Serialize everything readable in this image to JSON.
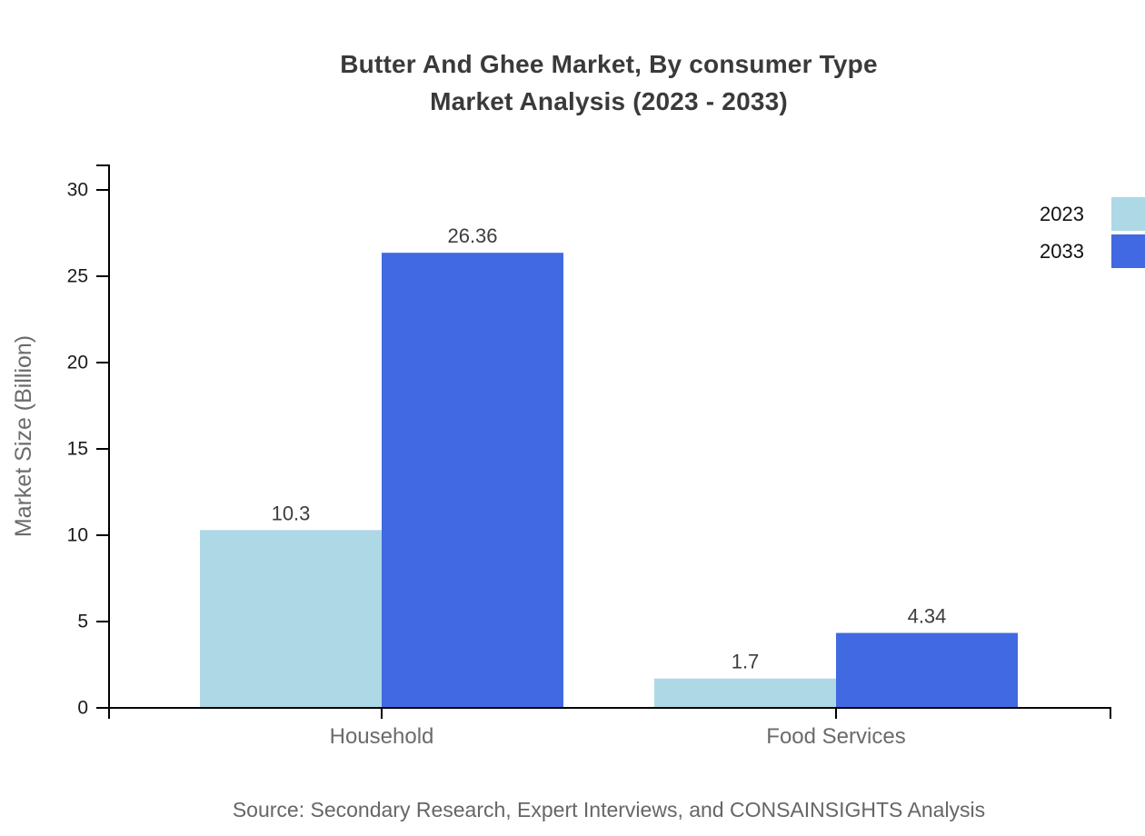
{
  "title": {
    "line1": "Butter And Ghee Market, By consumer Type",
    "line2": "Market Analysis (2023 - 2033)"
  },
  "source": "Source: Secondary Research, Expert Interviews, and CONSAINSIGHTS Analysis",
  "chart_data": {
    "type": "bar",
    "title": "Butter And Ghee Market, By consumer Type — Market Analysis (2023 - 2033)",
    "categories": [
      "Household",
      "Food Services"
    ],
    "series": [
      {
        "name": "2023",
        "color": "#ADD8E6",
        "values": [
          10.3,
          1.7
        ]
      },
      {
        "name": "2033",
        "color": "#4169E1",
        "values": [
          26.36,
          4.34
        ]
      }
    ],
    "value_labels": [
      "10.3",
      "26.36",
      "1.7",
      "4.34"
    ],
    "xlabel": "",
    "ylabel": "Market Size (Billion)",
    "ylim": [
      0,
      30
    ],
    "yticks": [
      0,
      5,
      10,
      15,
      20,
      25,
      30
    ],
    "grid": false,
    "legend_position": "top-right"
  },
  "colors": {
    "background": "#ffffff",
    "axis": "#000000",
    "tick_label": "#1a1a1a",
    "category_label": "#6b6b6b",
    "axis_title": "#6b6b6b",
    "value_label": "#3d3d3d",
    "title": "#3a3a3a",
    "source": "#666666",
    "series_2023": "#ADD8E6",
    "series_2033": "#4169E1"
  }
}
